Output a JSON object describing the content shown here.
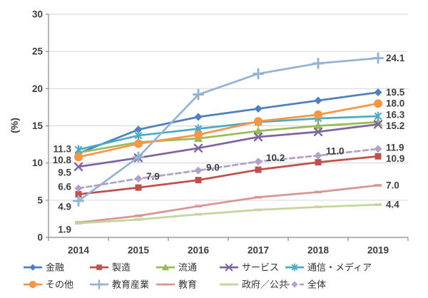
{
  "chart_data": {
    "type": "line",
    "title": "",
    "xlabel": "",
    "ylabel": "(%)",
    "x_categories": [
      "2014",
      "2015",
      "2016",
      "2017",
      "2018",
      "2019"
    ],
    "y_ticks": [
      0,
      5,
      10,
      15,
      20,
      25,
      30
    ],
    "ylim": [
      0,
      30
    ],
    "grid": "horizontal",
    "legend_position": "bottom",
    "series": [
      {
        "id": "kinyu",
        "name": "金融",
        "color": "#4F81BD",
        "marker": "diamond",
        "line": "solid",
        "values": [
          11.3,
          14.5,
          16.2,
          17.3,
          18.4,
          19.5
        ],
        "point_labels": [
          {
            "i": 0,
            "text": "11.3",
            "side": "left",
            "dy": -6
          },
          {
            "i": 5,
            "text": "19.5",
            "side": "right",
            "dy": 0
          }
        ]
      },
      {
        "id": "seizo",
        "name": "製造",
        "color": "#C0504D",
        "marker": "square",
        "line": "solid",
        "values": [
          5.8,
          6.7,
          7.7,
          9.1,
          10.1,
          10.9
        ],
        "point_labels": [
          {
            "i": 5,
            "text": "10.9",
            "side": "right",
            "dy": 3
          }
        ]
      },
      {
        "id": "ryutsu",
        "name": "流通",
        "color": "#9BBB59",
        "marker": "triangle",
        "line": "solid",
        "values": [
          11.4,
          12.8,
          13.3,
          14.3,
          15.0,
          15.5
        ],
        "point_labels": []
      },
      {
        "id": "sabisu",
        "name": "サービス",
        "color": "#8064A2",
        "marker": "x",
        "line": "solid",
        "values": [
          9.5,
          10.7,
          12.0,
          13.5,
          14.2,
          15.2
        ],
        "point_labels": [
          {
            "i": 0,
            "text": "9.5",
            "side": "left",
            "dy": 8
          },
          {
            "i": 5,
            "text": "15.2",
            "side": "right",
            "dy": 2
          }
        ]
      },
      {
        "id": "tsushin-media",
        "name": "通信・メディア",
        "color": "#4BACC6",
        "marker": "asterisk",
        "line": "solid",
        "values": [
          11.8,
          13.7,
          14.6,
          15.5,
          16.0,
          16.3
        ],
        "point_labels": [
          {
            "i": 5,
            "text": "16.3",
            "side": "right",
            "dy": -2
          }
        ]
      },
      {
        "id": "sonota",
        "name": "その他",
        "color": "#F79646",
        "marker": "circle",
        "line": "solid",
        "values": [
          10.8,
          12.6,
          13.8,
          15.6,
          16.5,
          18.0
        ],
        "point_labels": [
          {
            "i": 0,
            "text": "10.8",
            "side": "left",
            "dy": 4
          },
          {
            "i": 5,
            "text": "18.0",
            "side": "right",
            "dy": 0
          }
        ]
      },
      {
        "id": "kyoiku-sangyo",
        "name": "教育産業",
        "color": "#95B3D7",
        "marker": "plus",
        "line": "solid",
        "values": [
          4.9,
          10.8,
          19.2,
          22.0,
          23.4,
          24.1
        ],
        "point_labels": [
          {
            "i": 0,
            "text": "4.9",
            "side": "left",
            "dy": 8
          },
          {
            "i": 5,
            "text": "24.1",
            "side": "right",
            "dy": 0
          }
        ]
      },
      {
        "id": "kyoiku",
        "name": "教育",
        "color": "#D99694",
        "marker": "dash",
        "line": "solid",
        "values": [
          2.0,
          2.9,
          4.2,
          5.4,
          6.1,
          7.0
        ],
        "point_labels": [
          {
            "i": 5,
            "text": "7.0",
            "side": "right",
            "dy": 0
          }
        ]
      },
      {
        "id": "seifu-kokyo",
        "name": "政府／公共",
        "color": "#C3D69B",
        "marker": "dash",
        "line": "solid",
        "values": [
          1.9,
          2.4,
          3.1,
          3.7,
          4.1,
          4.4
        ],
        "point_labels": [
          {
            "i": 0,
            "text": "1.9",
            "side": "left",
            "dy": 9
          },
          {
            "i": 5,
            "text": "4.4",
            "side": "right",
            "dy": 0
          }
        ]
      },
      {
        "id": "zentai",
        "name": "全体",
        "color": "#B3A2C7",
        "marker": "diamond",
        "line": "dashed",
        "values": [
          6.6,
          7.9,
          9.0,
          10.2,
          11.0,
          11.9
        ],
        "point_labels": [
          {
            "i": 0,
            "text": "6.6",
            "side": "left",
            "dy": -2
          },
          {
            "i": 1,
            "text": "7.9",
            "side": "right",
            "dy": -3
          },
          {
            "i": 2,
            "text": "9.0",
            "side": "right",
            "dy": -4
          },
          {
            "i": 3,
            "text": "10.2",
            "side": "right",
            "dy": -5
          },
          {
            "i": 4,
            "text": "11.0",
            "side": "right",
            "dy": -6
          },
          {
            "i": 5,
            "text": "11.9",
            "side": "right",
            "dy": -2
          }
        ]
      }
    ]
  },
  "legend": {
    "rows": [
      [
        "金融",
        "製造",
        "流通",
        "サービス",
        "通信・メディア"
      ],
      [
        "その他",
        "教育産業",
        "教育",
        "政府／公共",
        "全体"
      ]
    ]
  },
  "colors": {
    "grid": "#D6D6D6",
    "axis": "#898989",
    "tick_text": "#3D3D3D",
    "data_label_text": "#404040",
    "legend_text": "#333333"
  }
}
